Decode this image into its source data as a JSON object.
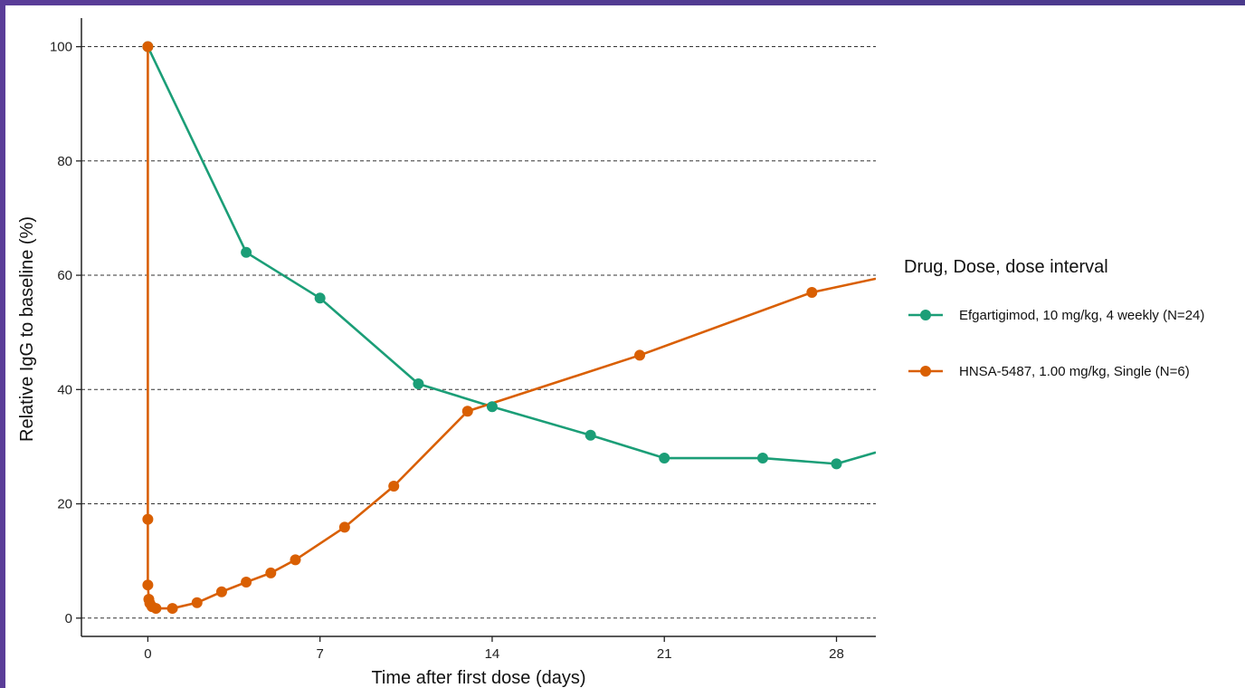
{
  "chart_data": {
    "type": "line",
    "title": "",
    "xlabel": "Time after first dose (days)",
    "ylabel": "Relative IgG to baseline (%)",
    "xlim": [
      -2.7,
      29.6
    ],
    "ylim": [
      -3.2,
      105
    ],
    "xticks": [
      0,
      7,
      14,
      21,
      28
    ],
    "yticks": [
      0,
      20,
      40,
      60,
      80,
      100
    ],
    "grid": "horizontal-dashed",
    "legend": {
      "title": "Drug, Dose, dose interval",
      "placement": "right"
    },
    "series": [
      {
        "name": "Efgartigimod, 10 mg/kg, 4 weekly (N=24)",
        "color": "#1b9e77",
        "x": [
          0,
          4,
          7,
          11,
          14,
          18,
          21,
          25,
          28,
          29.6
        ],
        "y": [
          100,
          64,
          56,
          41,
          37,
          32,
          28,
          28,
          27,
          29
        ],
        "markers": [
          true,
          true,
          true,
          true,
          true,
          true,
          true,
          true,
          true,
          false
        ]
      },
      {
        "name": "HNSA-5487, 1.00 mg/kg, Single (N=6)",
        "color": "#d95f02",
        "x": [
          0,
          0,
          0,
          0.04,
          0.08,
          0.17,
          0.33,
          1,
          2,
          3,
          4,
          5,
          6,
          8,
          10,
          13,
          20,
          27,
          29.6
        ],
        "y": [
          100,
          17.3,
          5.8,
          3.3,
          2.6,
          2.0,
          1.7,
          1.7,
          2.7,
          4.6,
          6.3,
          7.9,
          10.2,
          15.9,
          23.1,
          36.2,
          46,
          57,
          59.4
        ],
        "markers": [
          true,
          true,
          true,
          true,
          true,
          true,
          true,
          true,
          true,
          true,
          true,
          true,
          true,
          true,
          true,
          true,
          true,
          true,
          false
        ]
      }
    ]
  }
}
